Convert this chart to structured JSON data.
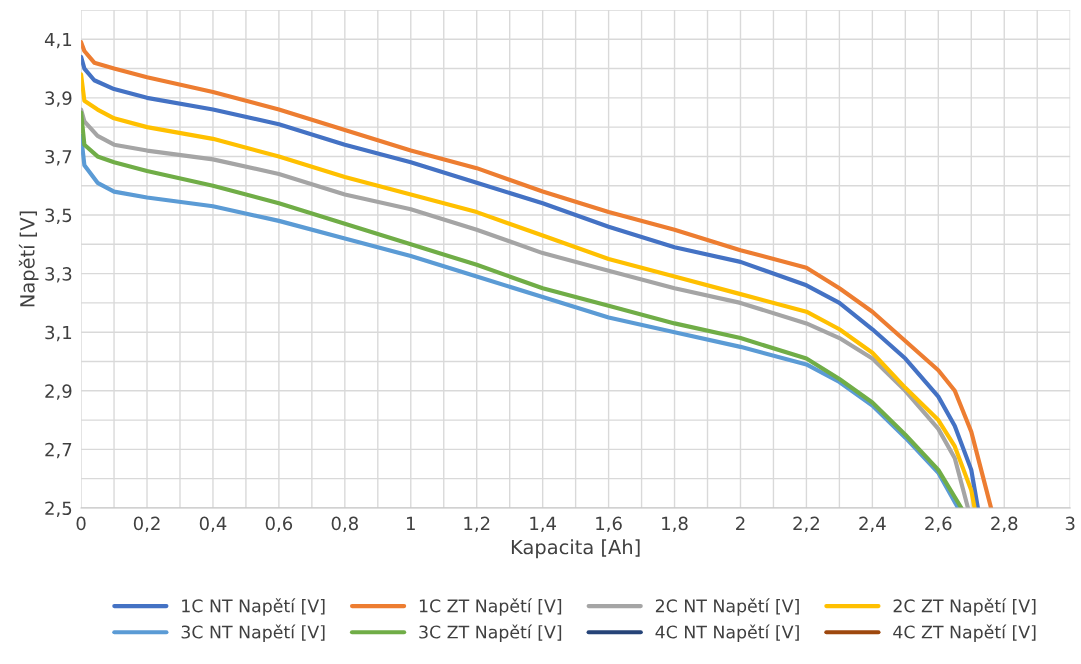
{
  "chart_data": {
    "type": "line",
    "xlabel": "Kapacita [Ah]",
    "ylabel": "Napětí [V]",
    "xlim": [
      0,
      3
    ],
    "ylim": [
      2.5,
      4.2
    ],
    "xticks": [
      0,
      {
        "value": 0.1,
        "label": null
      },
      {
        "value": 0.2,
        "label": "0,2"
      },
      {
        "value": 0.3,
        "label": null
      },
      {
        "value": 0.4,
        "label": "0,4"
      },
      {
        "value": 0.5,
        "label": null
      },
      {
        "value": 0.6,
        "label": "0,6"
      },
      {
        "value": 0.7,
        "label": null
      },
      {
        "value": 0.8,
        "label": "0,8"
      },
      {
        "value": 0.9,
        "label": null
      },
      1,
      {
        "value": 1.1,
        "label": null
      },
      {
        "value": 1.2,
        "label": "1,2"
      },
      {
        "value": 1.3,
        "label": null
      },
      {
        "value": 1.4,
        "label": "1,4"
      },
      {
        "value": 1.5,
        "label": null
      },
      {
        "value": 1.6,
        "label": "1,6"
      },
      {
        "value": 1.7,
        "label": null
      },
      {
        "value": 1.8,
        "label": "1,8"
      },
      {
        "value": 1.9,
        "label": null
      },
      2,
      {
        "value": 2.1,
        "label": null
      },
      {
        "value": 2.2,
        "label": "2,2"
      },
      {
        "value": 2.3,
        "label": null
      },
      {
        "value": 2.4,
        "label": "2,4"
      },
      {
        "value": 2.5,
        "label": null
      },
      {
        "value": 2.6,
        "label": "2,6"
      },
      {
        "value": 2.7,
        "label": null
      },
      {
        "value": 2.8,
        "label": "2,8"
      },
      {
        "value": 2.9,
        "label": null
      },
      3
    ],
    "yticks": [
      {
        "value": 2.5,
        "label": "2,5"
      },
      {
        "value": 2.6,
        "label": null
      },
      {
        "value": 2.7,
        "label": "2,7"
      },
      {
        "value": 2.8,
        "label": null
      },
      {
        "value": 2.9,
        "label": "2,9"
      },
      {
        "value": 3.0,
        "label": null
      },
      {
        "value": 3.1,
        "label": "3,1"
      },
      {
        "value": 3.2,
        "label": null
      },
      {
        "value": 3.3,
        "label": "3,3"
      },
      {
        "value": 3.4,
        "label": null
      },
      {
        "value": 3.5,
        "label": "3,5"
      },
      {
        "value": 3.6,
        "label": null
      },
      {
        "value": 3.7,
        "label": "3,7"
      },
      {
        "value": 3.8,
        "label": null
      },
      {
        "value": 3.9,
        "label": "3,9"
      },
      {
        "value": 4.0,
        "label": null
      },
      {
        "value": 4.1,
        "label": "4,1"
      },
      {
        "value": 4.2,
        "label": null
      }
    ],
    "grid": true,
    "legend": "bottom",
    "marker": "none",
    "line_style": "solid",
    "series": [
      {
        "name": "1C NT Napětí [V]",
        "color": "#4472c4",
        "x": [
          0,
          0.01,
          0.04,
          0.1,
          0.2,
          0.4,
          0.6,
          0.8,
          1.0,
          1.2,
          1.4,
          1.6,
          1.8,
          2.0,
          2.2,
          2.3,
          2.4,
          2.5,
          2.6,
          2.65,
          2.7,
          2.72
        ],
        "values": [
          4.04,
          4.0,
          3.96,
          3.93,
          3.9,
          3.86,
          3.81,
          3.74,
          3.68,
          3.61,
          3.54,
          3.46,
          3.39,
          3.34,
          3.26,
          3.2,
          3.11,
          3.01,
          2.88,
          2.78,
          2.63,
          2.5
        ]
      },
      {
        "name": "1C ZT Napětí [V]",
        "color": "#ed7d31",
        "x": [
          0,
          0.01,
          0.04,
          0.1,
          0.2,
          0.4,
          0.6,
          0.8,
          1.0,
          1.2,
          1.4,
          1.6,
          1.8,
          2.0,
          2.2,
          2.3,
          2.4,
          2.5,
          2.6,
          2.65,
          2.7,
          2.73,
          2.76
        ],
        "values": [
          4.09,
          4.06,
          4.02,
          4.0,
          3.97,
          3.92,
          3.86,
          3.79,
          3.72,
          3.66,
          3.58,
          3.51,
          3.45,
          3.38,
          3.32,
          3.25,
          3.17,
          3.07,
          2.97,
          2.9,
          2.76,
          2.63,
          2.5
        ]
      },
      {
        "name": "2C NT Napětí [V]",
        "color": "#a5a5a5",
        "x": [
          0,
          0.01,
          0.05,
          0.1,
          0.2,
          0.4,
          0.6,
          0.8,
          1.0,
          1.2,
          1.4,
          1.6,
          1.8,
          2.0,
          2.2,
          2.3,
          2.4,
          2.5,
          2.6,
          2.65,
          2.69
        ],
        "values": [
          3.86,
          3.82,
          3.77,
          3.74,
          3.72,
          3.69,
          3.64,
          3.57,
          3.52,
          3.45,
          3.37,
          3.31,
          3.25,
          3.2,
          3.13,
          3.08,
          3.01,
          2.9,
          2.77,
          2.67,
          2.5
        ]
      },
      {
        "name": "2C ZT Napětí [V]",
        "color": "#ffc000",
        "x": [
          0,
          0.01,
          0.05,
          0.1,
          0.2,
          0.4,
          0.6,
          0.8,
          1.0,
          1.2,
          1.4,
          1.6,
          1.8,
          2.0,
          2.2,
          2.3,
          2.4,
          2.5,
          2.6,
          2.65,
          2.7,
          2.71
        ],
        "values": [
          3.98,
          3.89,
          3.86,
          3.83,
          3.8,
          3.76,
          3.7,
          3.63,
          3.57,
          3.51,
          3.43,
          3.35,
          3.29,
          3.23,
          3.17,
          3.11,
          3.03,
          2.91,
          2.8,
          2.71,
          2.56,
          2.5
        ]
      },
      {
        "name": "3C NT Napětí [V]",
        "color": "#5b9bd5",
        "x": [
          0,
          0.01,
          0.05,
          0.1,
          0.2,
          0.4,
          0.6,
          0.8,
          1.0,
          1.2,
          1.4,
          1.6,
          1.8,
          2.0,
          2.2,
          2.3,
          2.4,
          2.5,
          2.6,
          2.66
        ],
        "values": [
          3.77,
          3.67,
          3.61,
          3.58,
          3.56,
          3.53,
          3.48,
          3.42,
          3.36,
          3.29,
          3.22,
          3.15,
          3.1,
          3.05,
          2.99,
          2.93,
          2.85,
          2.74,
          2.62,
          2.5
        ]
      },
      {
        "name": "3C ZT Napětí [V]",
        "color": "#70ad47",
        "x": [
          0,
          0.01,
          0.05,
          0.1,
          0.2,
          0.4,
          0.6,
          0.8,
          1.0,
          1.2,
          1.4,
          1.6,
          1.8,
          2.0,
          2.2,
          2.3,
          2.4,
          2.5,
          2.6,
          2.67
        ],
        "values": [
          3.85,
          3.74,
          3.7,
          3.68,
          3.65,
          3.6,
          3.54,
          3.47,
          3.4,
          3.33,
          3.25,
          3.19,
          3.13,
          3.08,
          3.01,
          2.94,
          2.86,
          2.75,
          2.63,
          2.5
        ]
      },
      {
        "name": "4C NT Napětí [V]",
        "color": "#264478"
      },
      {
        "name": "4C ZT Napětí [V]",
        "color": "#9e480e"
      }
    ]
  }
}
